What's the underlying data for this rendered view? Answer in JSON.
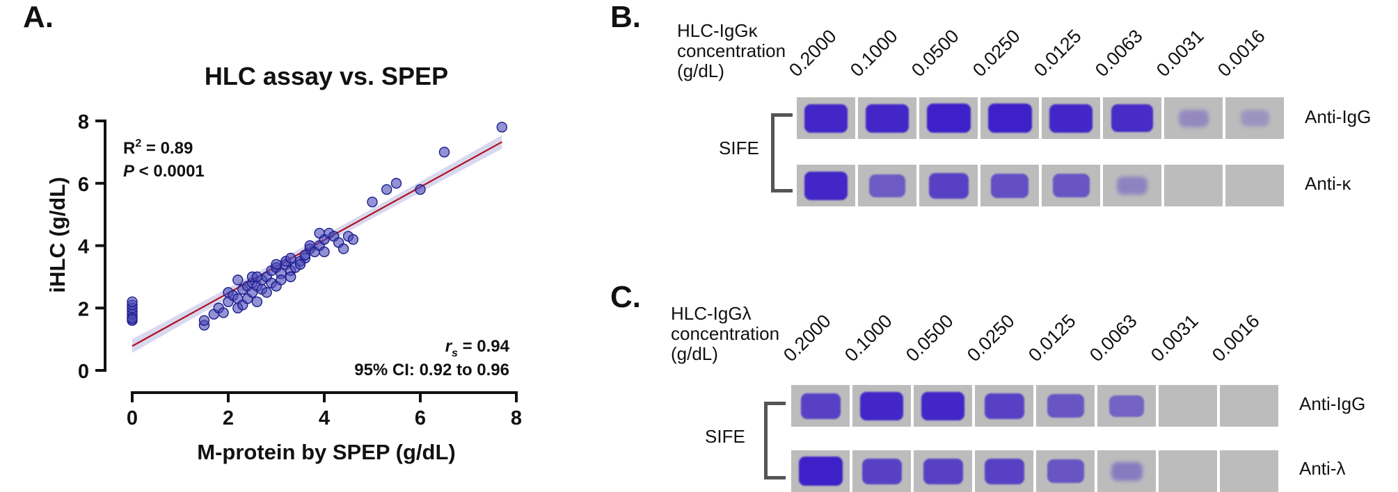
{
  "panel_a": {
    "letter": "A.",
    "stats": {
      "r2_prefix": "R",
      "r2_sup": "2",
      "r2_value": " = 0.89",
      "p_prefix": "P",
      "p_value": " < 0.0001",
      "rs_prefix": "r",
      "rs_sub": "s",
      "rs_value": " = 0.94",
      "ci": "95% CI: 0.92 to 0.96"
    }
  },
  "chart_data": {
    "type": "scatter",
    "title": "HLC assay vs. SPEP",
    "xlabel": "M-protein by SPEP (g/dL)",
    "ylabel": "iHLC (g/dL)",
    "xlim": [
      0,
      8
    ],
    "ylim": [
      0,
      8
    ],
    "xticks": [
      0,
      2,
      4,
      6,
      8
    ],
    "yticks": [
      0,
      2,
      4,
      6,
      8
    ],
    "grid": false,
    "regression": {
      "slope": 0.85,
      "intercept": 0.78,
      "x_range": [
        0,
        7.7
      ]
    },
    "points": [
      {
        "x": 0,
        "y": 1.6
      },
      {
        "x": 0,
        "y": 1.7
      },
      {
        "x": 0,
        "y": 1.8
      },
      {
        "x": 0,
        "y": 1.9
      },
      {
        "x": 0,
        "y": 2.0
      },
      {
        "x": 0,
        "y": 2.1
      },
      {
        "x": 0,
        "y": 2.2
      },
      {
        "x": 0,
        "y": 1.65
      },
      {
        "x": 1.5,
        "y": 1.45
      },
      {
        "x": 1.5,
        "y": 1.6
      },
      {
        "x": 1.7,
        "y": 1.8
      },
      {
        "x": 1.8,
        "y": 2.0
      },
      {
        "x": 1.9,
        "y": 1.85
      },
      {
        "x": 2.0,
        "y": 2.2
      },
      {
        "x": 2.0,
        "y": 2.5
      },
      {
        "x": 2.1,
        "y": 2.4
      },
      {
        "x": 2.2,
        "y": 2.0
      },
      {
        "x": 2.2,
        "y": 2.3
      },
      {
        "x": 2.2,
        "y": 2.9
      },
      {
        "x": 2.3,
        "y": 2.1
      },
      {
        "x": 2.3,
        "y": 2.6
      },
      {
        "x": 2.4,
        "y": 2.7
      },
      {
        "x": 2.4,
        "y": 2.3
      },
      {
        "x": 2.5,
        "y": 2.5
      },
      {
        "x": 2.5,
        "y": 2.8
      },
      {
        "x": 2.5,
        "y": 3.0
      },
      {
        "x": 2.6,
        "y": 2.7
      },
      {
        "x": 2.6,
        "y": 2.2
      },
      {
        "x": 2.7,
        "y": 2.6
      },
      {
        "x": 2.7,
        "y": 2.9
      },
      {
        "x": 2.8,
        "y": 2.5
      },
      {
        "x": 2.8,
        "y": 3.0
      },
      {
        "x": 2.9,
        "y": 2.8
      },
      {
        "x": 2.9,
        "y": 3.2
      },
      {
        "x": 3.0,
        "y": 2.7
      },
      {
        "x": 3.0,
        "y": 3.3
      },
      {
        "x": 3.0,
        "y": 3.4
      },
      {
        "x": 3.1,
        "y": 3.1
      },
      {
        "x": 3.1,
        "y": 2.9
      },
      {
        "x": 3.2,
        "y": 3.4
      },
      {
        "x": 3.2,
        "y": 3.5
      },
      {
        "x": 3.3,
        "y": 3.2
      },
      {
        "x": 3.3,
        "y": 3.6
      },
      {
        "x": 3.4,
        "y": 3.3
      },
      {
        "x": 3.5,
        "y": 3.5
      },
      {
        "x": 3.6,
        "y": 3.6
      },
      {
        "x": 3.6,
        "y": 3.7
      },
      {
        "x": 3.7,
        "y": 3.9
      },
      {
        "x": 3.7,
        "y": 4.0
      },
      {
        "x": 3.8,
        "y": 3.8
      },
      {
        "x": 3.9,
        "y": 4.0
      },
      {
        "x": 4.0,
        "y": 3.8
      },
      {
        "x": 4.0,
        "y": 4.2
      },
      {
        "x": 4.1,
        "y": 4.4
      },
      {
        "x": 4.2,
        "y": 4.3
      },
      {
        "x": 4.3,
        "y": 4.1
      },
      {
        "x": 4.4,
        "y": 3.9
      },
      {
        "x": 4.5,
        "y": 4.3
      },
      {
        "x": 4.6,
        "y": 4.2
      },
      {
        "x": 5.0,
        "y": 5.4
      },
      {
        "x": 5.3,
        "y": 5.8
      },
      {
        "x": 5.5,
        "y": 6.0
      },
      {
        "x": 6.0,
        "y": 5.8
      },
      {
        "x": 6.5,
        "y": 7.0
      },
      {
        "x": 7.7,
        "y": 7.8
      },
      {
        "x": 3.3,
        "y": 3.0
      },
      {
        "x": 2.6,
        "y": 3.0
      },
      {
        "x": 3.5,
        "y": 3.4
      },
      {
        "x": 3.9,
        "y": 4.4
      }
    ]
  },
  "panel_b": {
    "letter": "B.",
    "label_lines": [
      "HLC-IgGκ",
      "concentration",
      "(g/dL)"
    ],
    "concentrations": [
      "0.2000",
      "0.1000",
      "0.0500",
      "0.0250",
      "0.0125",
      "0.0063",
      "0.0031",
      "0.0016"
    ],
    "group_label": "SIFE",
    "rows": [
      {
        "label": "Anti-IgG",
        "intensities": [
          0.95,
          0.95,
          1.0,
          1.0,
          0.95,
          0.9,
          0.2,
          0.12
        ]
      },
      {
        "label": "Anti-κ",
        "intensities": [
          0.95,
          0.55,
          0.75,
          0.65,
          0.6,
          0.25,
          0.0,
          0.0
        ]
      }
    ]
  },
  "panel_c": {
    "letter": "C.",
    "label_lines": [
      "HLC-IgGλ",
      "concentration",
      "(g/dL)"
    ],
    "concentrations": [
      "0.2000",
      "0.1000",
      "0.0500",
      "0.0250",
      "0.0125",
      "0.0063",
      "0.0031",
      "0.0016"
    ],
    "group_label": "SIFE",
    "rows": [
      {
        "label": "Anti-IgG",
        "intensities": [
          0.75,
          0.95,
          0.95,
          0.75,
          0.6,
          0.5,
          0.0,
          0.0
        ]
      },
      {
        "label": "Anti-λ",
        "intensities": [
          1.0,
          0.75,
          0.75,
          0.75,
          0.6,
          0.3,
          0.0,
          0.0
        ]
      }
    ]
  },
  "colors": {
    "point_fill": "#4a4ab8",
    "point_stroke": "#1c1c8c",
    "regression_line": "#b01020",
    "confidence_band": "#c8c8e8",
    "gel_background": "#bcbcbc",
    "band_color": "#3e20c8"
  }
}
